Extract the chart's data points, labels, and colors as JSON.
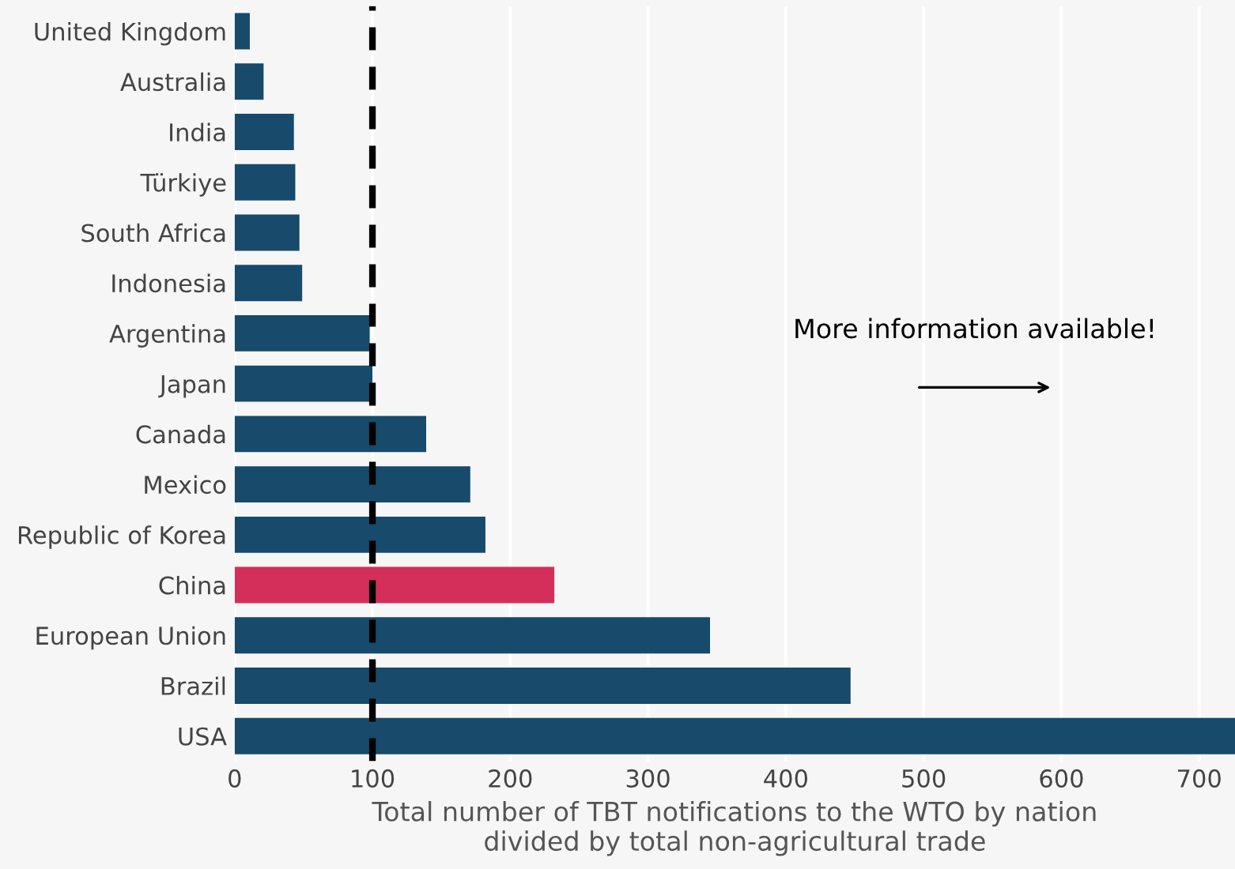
{
  "chart_data": {
    "type": "bar",
    "orientation": "horizontal",
    "categories": [
      "United Kingdom",
      "Australia",
      "India",
      "Türkiye",
      "South Africa",
      "Indonesia",
      "Argentina",
      "Japan",
      "Canada",
      "Mexico",
      "Republic of Korea",
      "China",
      "European Union",
      "Brazil",
      "USA"
    ],
    "values": [
      11,
      21,
      43,
      44,
      47,
      49,
      98,
      100,
      139,
      171,
      182,
      232,
      345,
      447,
      726
    ],
    "colors": [
      "#174a6b",
      "#174a6b",
      "#174a6b",
      "#174a6b",
      "#174a6b",
      "#174a6b",
      "#174a6b",
      "#174a6b",
      "#174a6b",
      "#174a6b",
      "#174a6b",
      "#d42f5a",
      "#174a6b",
      "#174a6b",
      "#174a6b"
    ],
    "xlim": [
      0,
      726
    ],
    "xticks": [
      0,
      100,
      200,
      300,
      400,
      500,
      600,
      700
    ],
    "xlabel": "Total number of TBT notifications to the WTO by nation\ndivided by total non-agricultural trade",
    "grid": "x",
    "ref_lines": [
      {
        "axis": "x",
        "value": 100,
        "color": "#000000",
        "line_style": "dashed"
      }
    ],
    "annotations": [
      "More information available!"
    ]
  }
}
